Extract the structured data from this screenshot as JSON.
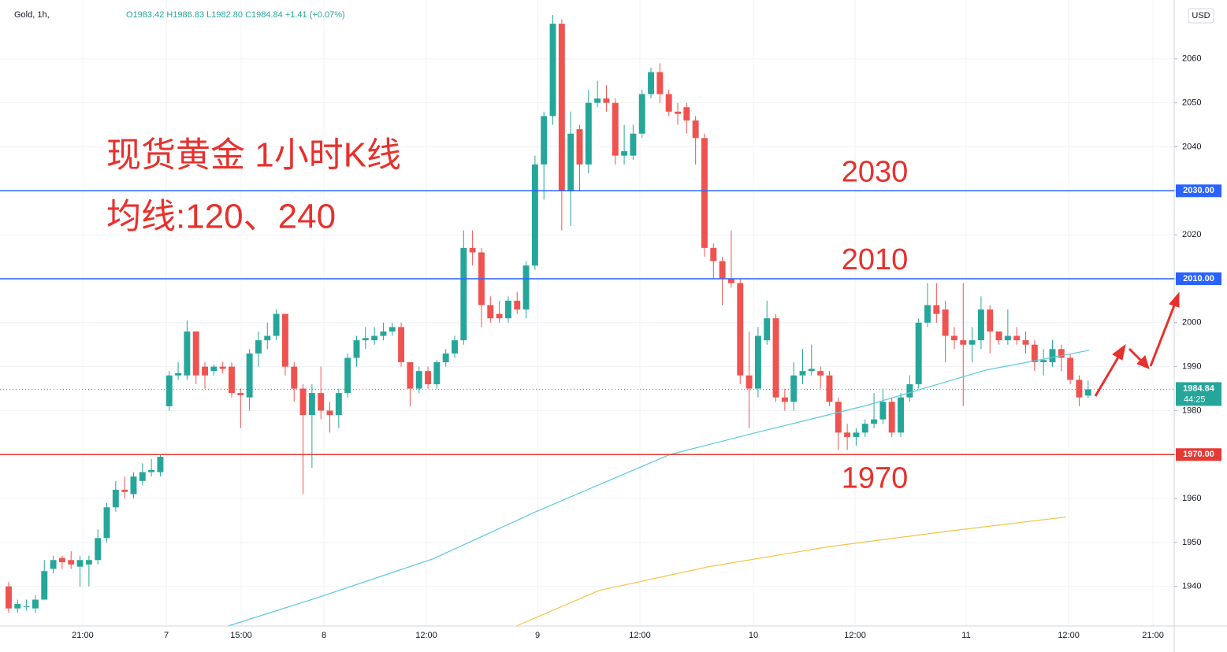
{
  "chart_data": {
    "type": "candlestick",
    "symbol": "Gold, 1h,",
    "ohlc_text": "O1983.42 H1986.83 L1982.80 C1984.84 +1.41 (+0.07%)",
    "currency": "USD",
    "annotations": [
      "现货黄金 1小时K线",
      "均线:120、240"
    ],
    "up_color": "#26a69a",
    "down_color": "#ef5350",
    "open": [
      1940,
      1935,
      1935.5,
      1935,
      1937,
      1944,
      1946.5,
      1946,
      1944.5,
      1945,
      1946,
      1951,
      1958,
      1962,
      1961,
      1964,
      1966,
      1966,
      1981,
      1988,
      1988,
      1998,
      1990,
      1989,
      1990,
      1990,
      1984,
      1983,
      1993,
      1996,
      1997,
      2002,
      1990,
      1985,
      1979,
      1984,
      1980,
      1979,
      1984,
      1992,
      1996,
      1996,
      1997,
      1998,
      1999,
      1991,
      1985,
      1989,
      1986,
      1991,
      1993,
      1996,
      2017,
      2016,
      2004,
      2002,
      2001,
      2005,
      2003,
      2013,
      2036,
      2047,
      2068,
      2030,
      2044,
      2036,
      2050,
      2051,
      2050,
      2038,
      2038,
      2043,
      2052,
      2057,
      2052,
      2048,
      2049,
      2046,
      2042,
      2017,
      2014,
      2010,
      2009,
      1988,
      1985,
      1996,
      2001,
      1983,
      1982,
      1988,
      1989,
      1989,
      1988,
      1982,
      1975,
      1974,
      1975,
      1977,
      1978,
      1982,
      1975,
      1983,
      1986,
      2000,
      2004,
      2003,
      1997,
      1996,
      1995,
      1996,
      2003,
      1998,
      1996,
      1997,
      1996,
      1995,
      1991,
      1991,
      1994,
      1992,
      1987,
      1983.42
    ],
    "high": [
      1941,
      1937,
      1937,
      1938,
      1946,
      1947,
      1947,
      1948,
      1947,
      1947,
      1953,
      1959,
      1964,
      1965,
      1966,
      1968,
      1969,
      1970,
      1989,
      1991,
      2000.5,
      1998,
      1991,
      1990.5,
      1991,
      1991,
      1985,
      1994,
      1998,
      2000,
      2003,
      2002,
      1991,
      1986,
      1986,
      1990,
      1982,
      1985,
      1993,
      1997,
      1999,
      1999,
      2000,
      2000,
      2000,
      1991,
      1990,
      1990,
      1991.5,
      1994,
      1997,
      2021,
      2021,
      2017,
      2006,
      2005,
      2006,
      2007,
      2014,
      2038,
      2048,
      2070,
      2069,
      2048,
      2045,
      2053,
      2055,
      2054,
      2051,
      2045,
      2045,
      2053,
      2058,
      2059,
      2053,
      2050,
      2050,
      2047,
      2043,
      2018,
      2015,
      2021,
      2010,
      1998,
      1999,
      2005,
      2002,
      1985,
      1991,
      1994,
      1995,
      1990,
      1989,
      1983,
      1977,
      1976,
      1978,
      1984,
      1985,
      1983,
      1984,
      1988,
      2001,
      2009,
      2009,
      2005,
      1999,
      2009,
      1999,
      2006,
      2004,
      1998,
      2003,
      1999,
      1998,
      1996,
      1994,
      1996,
      1995,
      1993,
      1988,
      1986.83
    ],
    "low": [
      1934,
      1934,
      1934.5,
      1934,
      1937,
      1943,
      1944,
      1944,
      1940,
      1940,
      1945,
      1950,
      1957,
      1960,
      1960,
      1963,
      1965,
      1965,
      1980,
      1987,
      1987,
      1986,
      1985,
      1988,
      1988.5,
      1983,
      1976,
      1980,
      1990,
      1994,
      1996,
      1988,
      1982,
      1961,
      1967,
      1978,
      1975,
      1976,
      1983,
      1990,
      1994,
      1995,
      1996,
      1997,
      1990,
      1981,
      1984,
      1985,
      1985,
      1990,
      1992,
      1995,
      2013,
      1999,
      2000,
      2000,
      2000,
      2002,
      2001,
      2012,
      2028,
      2045,
      2021,
      2022,
      2030,
      2034,
      2049,
      2048,
      2036,
      2036,
      2037,
      2042,
      2051,
      2050,
      2047,
      2045,
      2043,
      2036,
      2015,
      2010,
      2004,
      2008,
      1986,
      1976,
      1983,
      1995,
      1982,
      1980,
      1980,
      1986,
      1988,
      1985,
      1981,
      1971,
      1971,
      1972,
      1974,
      1976,
      1977,
      1974,
      1974,
      1982,
      1985,
      1999,
      2000,
      1991,
      1994,
      1981,
      1991,
      1994,
      1993,
      1995,
      1995,
      1995,
      1993,
      1989,
      1988,
      1990,
      1989,
      1986,
      1981,
      1982.8
    ],
    "close": [
      1935,
      1936,
      1935.5,
      1937,
      1943.5,
      1946,
      1945.5,
      1945,
      1946,
      1946,
      1951,
      1958,
      1962,
      1961.5,
      1965,
      1966,
      1966.5,
      1969.5,
      1988,
      1988.5,
      1998,
      1988,
      1988,
      1990,
      1989.5,
      1984,
      1983.5,
      1993,
      1996,
      1997,
      2002,
      1990,
      1985,
      1979,
      1984,
      1980,
      1979,
      1984,
      1992,
      1996,
      1996.5,
      1997,
      1998,
      1999,
      1991,
      1985,
      1989,
      1986,
      1991,
      1993,
      1996,
      2017,
      2016,
      2004,
      2001,
      2001,
      2005,
      2003,
      2013,
      2036,
      2047,
      2068,
      2030,
      2043,
      2036,
      2050,
      2051,
      2050,
      2038,
      2039,
      2043,
      2052,
      2057,
      2052,
      2048,
      2047.5,
      2046,
      2042,
      2017,
      2014,
      2010,
      2009,
      1988,
      1985,
      1997,
      2001,
      1983,
      1982,
      1988,
      1989,
      1989.5,
      1988,
      1982,
      1975,
      1974,
      1975,
      1977,
      1978,
      1982,
      1975,
      1983,
      1986,
      2000,
      2004,
      2002,
      1997,
      1996,
      1995,
      1996,
      2003,
      1998,
      1996,
      1997,
      1996,
      1995,
      1991,
      1991.5,
      1994,
      1992,
      1987,
      1983,
      1984.84
    ],
    "overlays": [
      {
        "color": "#5ac8de",
        "x": [
          24.6,
          34.4,
          47.6,
          59.1,
          74.1,
          83.8,
          96.2,
          109.5,
          121.1
        ],
        "values": [
          1931,
          1937.3,
          1946.3,
          1957,
          1970,
          1975,
          1981.2,
          1989.2,
          1993.7
        ]
      },
      {
        "color": "#f5c344",
        "x": [
          56.9,
          66.2,
          78.5,
          91.8,
          105,
          118.5
        ],
        "values": [
          1931,
          1939.1,
          1944.5,
          1949,
          1952.5,
          1955.8
        ]
      }
    ],
    "levels": [
      {
        "value": 2030,
        "label": "2030",
        "axis_label": "2030.00",
        "color": "#2962ff"
      },
      {
        "value": 2010,
        "label": "2010",
        "axis_label": "2010.00",
        "color": "#2962ff"
      },
      {
        "value": 1970,
        "label": "1970",
        "axis_label": "1970.00",
        "color": "#e53935"
      }
    ],
    "last_price": 1984.84,
    "countdown": "44:25",
    "ylim": [
      1931,
      2073.4
    ],
    "yticks": [
      1940,
      1950,
      1960,
      1970,
      1980,
      1990,
      2000,
      2010,
      2020,
      2030,
      2040,
      2050,
      2060
    ],
    "xlim": [
      -0.97,
      130.65
    ],
    "xticks": [
      {
        "value": 8.3,
        "label": "21:00"
      },
      {
        "value": 17.67,
        "label": "7"
      },
      {
        "value": 26.06,
        "label": "15:00"
      },
      {
        "value": 35.34,
        "label": "8"
      },
      {
        "value": 46.82,
        "label": "12:00"
      },
      {
        "value": 59.28,
        "label": "9"
      },
      {
        "value": 70.76,
        "label": "12:00"
      },
      {
        "value": 83.48,
        "label": "10"
      },
      {
        "value": 94.88,
        "label": "12:00"
      },
      {
        "value": 107.33,
        "label": "11"
      },
      {
        "value": 118.82,
        "label": "12:00"
      },
      {
        "value": 128.27,
        "label": "21:00"
      }
    ],
    "grid": true
  }
}
